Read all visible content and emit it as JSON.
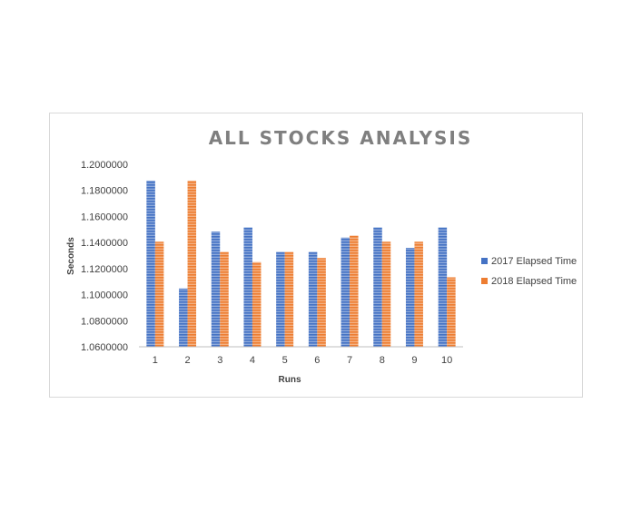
{
  "chart_data": {
    "type": "bar",
    "title": "ALL STOCKS ANALYSIS",
    "xlabel": "Runs",
    "ylabel": "Seconds",
    "categories": [
      "1",
      "2",
      "3",
      "4",
      "5",
      "6",
      "7",
      "8",
      "9",
      "10"
    ],
    "ylim": [
      1.06,
      1.2
    ],
    "yticks": [
      "1.0600000",
      "1.0800000",
      "1.1000000",
      "1.1200000",
      "1.1400000",
      "1.1600000",
      "1.1800000",
      "1.2000000"
    ],
    "grid": false,
    "legend_position": "right",
    "series": [
      {
        "name": "2017 Elapsed Time",
        "color": "#4472c4",
        "values": [
          1.1875,
          1.1047,
          1.1484,
          1.1516,
          1.1328,
          1.1328,
          1.1438,
          1.1516,
          1.1359,
          1.1516
        ]
      },
      {
        "name": "2018 Elapsed Time",
        "color": "#ed7d31",
        "values": [
          1.1406,
          1.1875,
          1.1328,
          1.125,
          1.1328,
          1.1281,
          1.1453,
          1.1406,
          1.1406,
          1.1133
        ]
      }
    ]
  }
}
